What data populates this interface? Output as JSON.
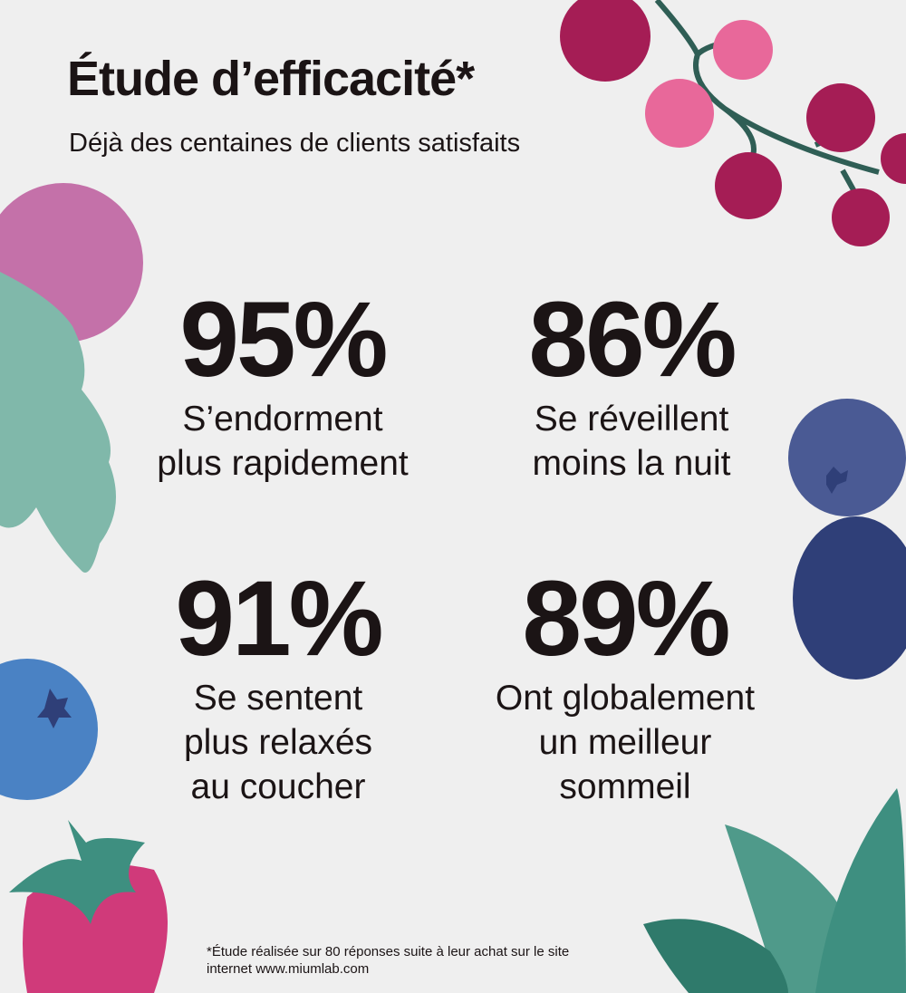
{
  "header": {
    "title": "Étude d’efficacité*",
    "subtitle": "Déjà des centaines de clients satisfaits"
  },
  "stats": [
    {
      "value": "95%",
      "label_lines": [
        "S’endorment",
        "plus rapidement"
      ]
    },
    {
      "value": "86%",
      "label_lines": [
        "Se réveillent",
        "moins la nuit"
      ]
    },
    {
      "value": "91%",
      "label_lines": [
        "Se sentent",
        "plus relaxés",
        "au coucher"
      ]
    },
    {
      "value": "89%",
      "label_lines": [
        "Ont globalement",
        "un meilleur",
        "sommeil"
      ]
    }
  ],
  "footnote": {
    "line1": "*Étude réalisée sur 80 réponses suite à leur achat sur le site",
    "line2": "internet www.miumlab.com"
  },
  "colors": {
    "background": "#efefef",
    "text": "#1b1415",
    "currant_dark": "#a51d55",
    "currant_light": "#e8689a",
    "stem": "#2f5e55",
    "raspberry": "#c471a9",
    "leaf": "#80b8aa",
    "blueberry": "#4a82c4",
    "blueberry_dark": "#4a5a94",
    "blackberry": "#2f3f78",
    "strawberry": "#d03a7a",
    "mint": "#3e8f80"
  }
}
